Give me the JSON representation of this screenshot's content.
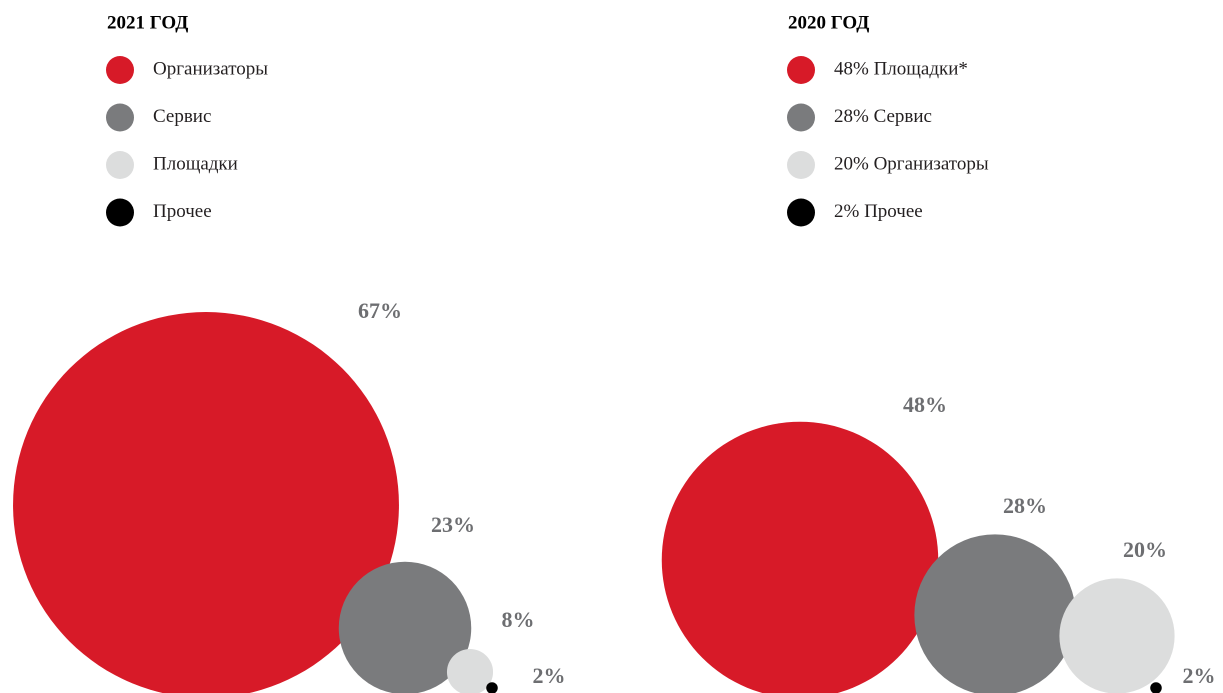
{
  "chart_data": [
    {
      "type": "bubble",
      "title": "2021 ГОД",
      "series": [
        {
          "name": "Организаторы",
          "color": "#d71a28",
          "values": [
            67
          ],
          "value_labels": [
            "67%"
          ]
        },
        {
          "name": "Сервис",
          "color": "#7a7b7d",
          "values": [
            23
          ],
          "value_labels": [
            "23%"
          ]
        },
        {
          "name": "Площадки",
          "color": "#dcdddd",
          "values": [
            8
          ],
          "value_labels": [
            "8%"
          ]
        },
        {
          "name": "Прочее",
          "color": "#000000",
          "values": [
            2
          ],
          "value_labels": [
            "2%"
          ]
        }
      ]
    },
    {
      "type": "bubble",
      "title": "2020 ГОД",
      "series": [
        {
          "name": "48% Площадки*",
          "color": "#d71a28",
          "values": [
            48
          ],
          "value_labels": [
            "48%"
          ]
        },
        {
          "name": "28% Сервис",
          "color": "#7a7b7d",
          "values": [
            28
          ],
          "value_labels": [
            "28%"
          ]
        },
        {
          "name": "20% Организаторы",
          "color": "#dcdddd",
          "values": [
            20
          ],
          "value_labels": [
            "20%"
          ]
        },
        {
          "name": "2% Прочее",
          "color": "#000000",
          "values": [
            2
          ],
          "value_labels": [
            "2%"
          ]
        }
      ]
    }
  ]
}
